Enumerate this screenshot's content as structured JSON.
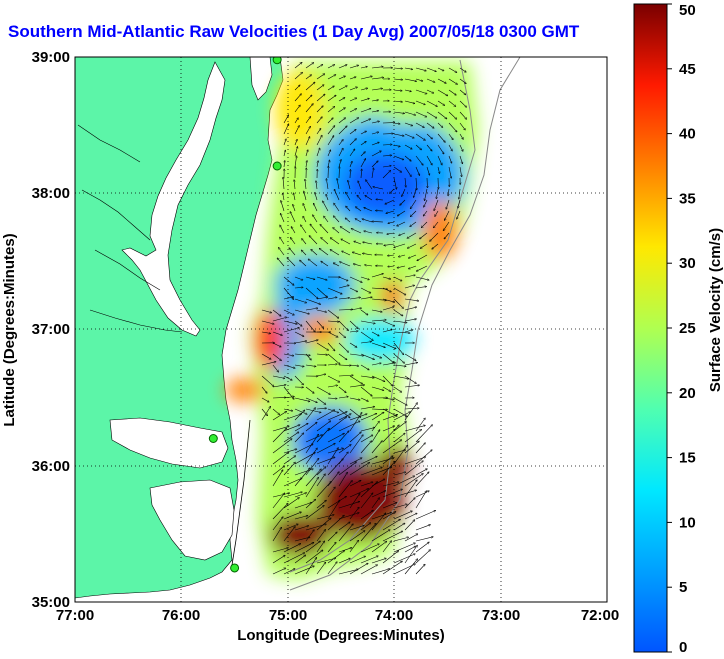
{
  "title": "Southern Mid-Atlantic Raw Velocities (1 Day Avg) 2007/05/18 0300 GMT",
  "map": {
    "xlabel": "Longitude (Degrees:Minutes)",
    "ylabel": "Latitude (Degrees:Minutes)",
    "x_ticks": [
      "77:00",
      "76:00",
      "75:00",
      "74:00",
      "73:00",
      "72:00"
    ],
    "y_ticks": [
      "39:00",
      "38:00",
      "37:00",
      "36:00",
      "35:00"
    ],
    "x_range": [
      -77,
      -72
    ],
    "y_range": [
      35,
      39
    ],
    "land_color": "#5cf5a8",
    "ocean_color": "#ffffff",
    "stations": [
      {
        "lon": -75.1,
        "lat": 38.98
      },
      {
        "lon": -75.1,
        "lat": 38.2
      },
      {
        "lon": -75.7,
        "lat": 36.2
      },
      {
        "lon": -75.5,
        "lat": 35.25
      }
    ]
  },
  "colorbar": {
    "label": "Surface Velocity (cm/s)",
    "ticks": [
      "0",
      "5",
      "10",
      "15",
      "20",
      "25",
      "30",
      "35",
      "40",
      "45",
      "50"
    ],
    "min": 0,
    "max": 50,
    "units": "cm/s"
  }
}
